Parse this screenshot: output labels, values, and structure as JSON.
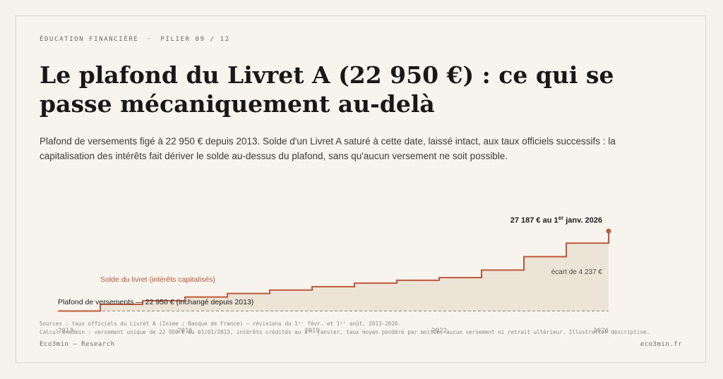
{
  "header": {
    "kicker_section": "ÉDUCATION FINANCIÈRE",
    "kicker_separator": "·",
    "kicker_pillar": "PILIER 09 / 12",
    "title": "Le plafond du Livret A (22 950 €) : ce qui se passe mécaniquement au-delà",
    "subtitle": "Plafond de versements figé à 22 950 € depuis 2013. Solde d'un Livret A saturé à cette date, laissé intact, aux taux officiels successifs : la capitalisation des intérêts fait dériver le solde au-dessus du plafond, sans qu'aucun versement ne soit possible."
  },
  "chart_data": {
    "type": "line",
    "step": true,
    "x_start": 2013,
    "x_end": 2026,
    "xticks": [
      "2013",
      "2016",
      "2019",
      "2022",
      "2026"
    ],
    "ylim": [
      22500,
      27800
    ],
    "series": [
      {
        "name": "Solde du livret (intérêts capitalisés)",
        "color": "#c0583a",
        "x": [
          2013,
          2014,
          2015,
          2016,
          2017,
          2018,
          2019,
          2020,
          2021,
          2022,
          2023,
          2024,
          2025,
          2026
        ],
        "values": [
          22950,
          23303,
          23497,
          23690,
          23877,
          24060,
          24240,
          24430,
          24580,
          24720,
          25120,
          25830,
          26550,
          27187
        ]
      },
      {
        "name": "Plafond de versements",
        "color": "#8d8880",
        "x": [
          2013,
          2026
        ],
        "values": [
          22950,
          22950
        ]
      }
    ],
    "annotations": {
      "ceiling_label": "Plafond de versements — 22 950 € (inchangé depuis 2013)",
      "end_value": "27 187 € au 1er janv. 2026",
      "end_value_main": "27 187 € au 1",
      "end_value_sup": "er",
      "end_value_rest": " janv. 2026",
      "gap_label": "écart de 4 237 €",
      "series_label": "Solde du livret (intérêts capitalisés)"
    },
    "fill_color": "#ece5d7"
  },
  "footer": {
    "source_line1": "Sources : taux officiels du Livret A (Insee ; Banque de France) — révisions du 1ᵉʳ févr. et 1ᵉʳ août, 2013-2026.",
    "source_line2": "Calcul eco3min : versement unique de 22 950 € au 01/01/2013, intérêts crédités au 1ᵉʳ janvier, taux moyen pondéré par moitié, aucun versement ni retrait ultérieur. Illustration descriptive.",
    "brand_left": "Eco3min — Research",
    "brand_right": "eco3min.fr"
  }
}
